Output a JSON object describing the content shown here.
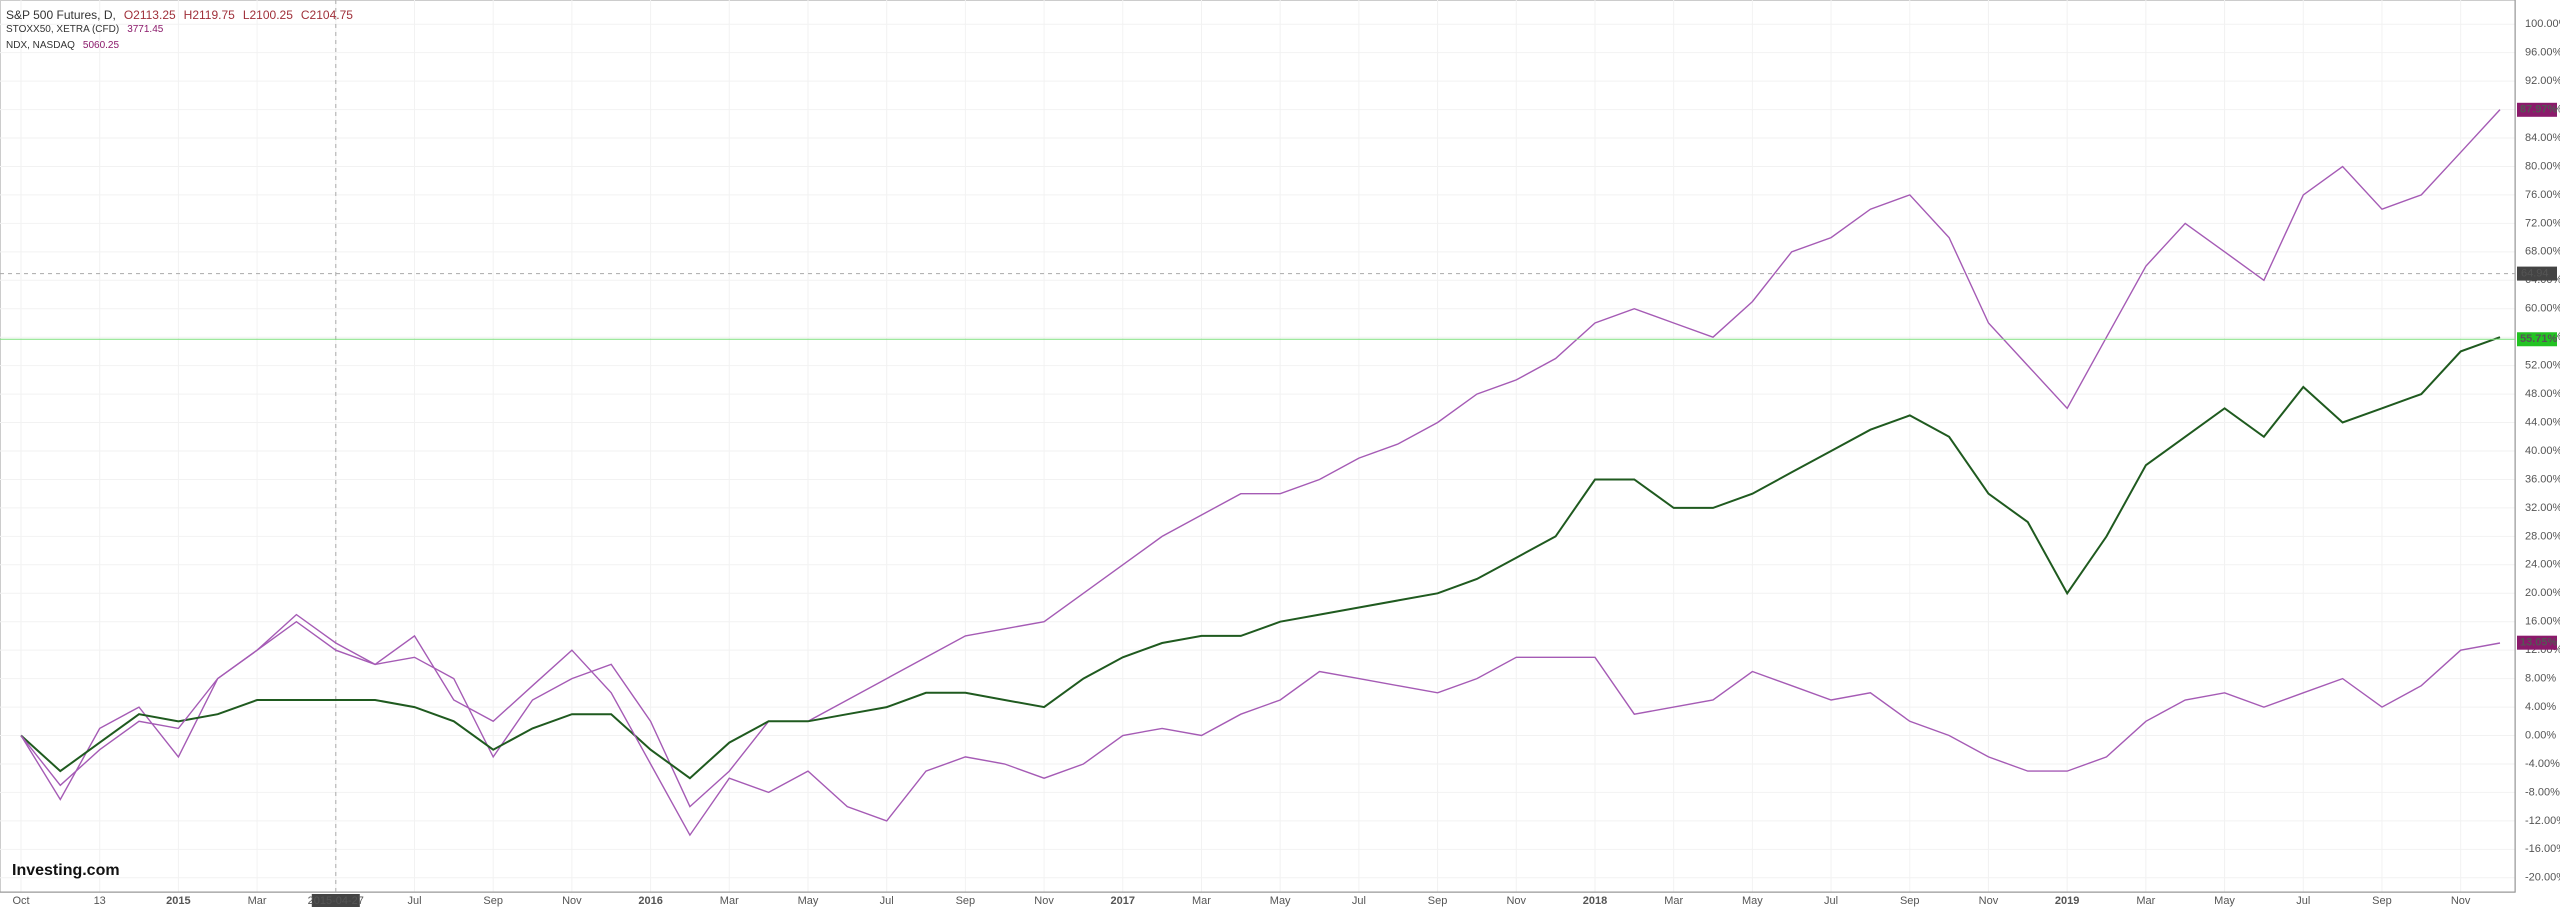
{
  "chart_data": {
    "type": "line",
    "title": "S&P 500 Futures, D,",
    "ohlc": [
      "O2113.25",
      "H2119.75",
      "L2100.25",
      "C2104.75"
    ],
    "categories": [
      "Oct",
      null,
      "13",
      null,
      "2015",
      null,
      "Mar",
      null,
      "2015-04-27",
      null,
      "Jul",
      null,
      "Sep",
      null,
      "Nov",
      null,
      "2016",
      null,
      "Mar",
      null,
      "May",
      null,
      "Jul",
      null,
      "Sep",
      null,
      "Nov",
      null,
      "2017",
      null,
      "Mar",
      null,
      "May",
      null,
      "Jul",
      null,
      "Sep",
      null,
      "Nov",
      null,
      "2018",
      null,
      "Mar",
      null,
      "May",
      null,
      "Jul",
      null,
      "Sep",
      null,
      "Nov",
      null,
      "2019",
      null,
      "Mar",
      null,
      "May",
      null,
      "Jul",
      null,
      "Sep",
      null,
      "Nov",
      null
    ],
    "series": [
      {
        "name": "NDX, NASDAQ",
        "price": "5060.25",
        "color": "#a55bb5",
        "tag_color": "#8b1a6b",
        "end_value": 87.97,
        "end_label": "87.97%",
        "values": [
          0,
          -9,
          1,
          4,
          -3,
          8,
          12,
          16,
          12,
          10,
          11,
          8,
          -3,
          5,
          8,
          10,
          2,
          -10,
          -5,
          2,
          2,
          5,
          8,
          11,
          14,
          15,
          16,
          20,
          24,
          28,
          31,
          34,
          34,
          36,
          39,
          41,
          44,
          48,
          50,
          53,
          58,
          60,
          58,
          56,
          61,
          68,
          70,
          74,
          76,
          70,
          58,
          52,
          46,
          56,
          66,
          72,
          68,
          64,
          76,
          80,
          74,
          76,
          82,
          88
        ]
      },
      {
        "name": "S&P 500 Futures",
        "color": "#1f5a1f",
        "tag_color": "#22c322",
        "end_value": 55.71,
        "end_label": "55.71%",
        "values": [
          0,
          -5,
          -1,
          3,
          2,
          3,
          5,
          5,
          5,
          5,
          4,
          2,
          -2,
          1,
          3,
          3,
          -2,
          -6,
          -1,
          2,
          2,
          3,
          4,
          6,
          6,
          5,
          4,
          8,
          11,
          13,
          14,
          14,
          16,
          17,
          18,
          19,
          20,
          22,
          25,
          28,
          36,
          36,
          32,
          32,
          34,
          37,
          40,
          43,
          45,
          42,
          34,
          30,
          20,
          28,
          38,
          42,
          46,
          42,
          49,
          44,
          46,
          48,
          54,
          56
        ]
      },
      {
        "name": "STOXX50, XETRA (CFD)",
        "price": "3771.45",
        "color": "#a55bb5",
        "tag_color": "#8b1a6b",
        "end_value": 13.05,
        "end_label": "13.05%",
        "values": [
          0,
          -7,
          -2,
          2,
          1,
          8,
          12,
          17,
          13,
          10,
          14,
          5,
          2,
          7,
          12,
          6,
          -4,
          -14,
          -6,
          -8,
          -5,
          -10,
          -12,
          -5,
          -3,
          -4,
          -6,
          -4,
          0,
          1,
          0,
          3,
          5,
          9,
          8,
          7,
          6,
          8,
          11,
          11,
          11,
          3,
          4,
          5,
          9,
          7,
          5,
          6,
          2,
          0,
          -3,
          -5,
          -5,
          -3,
          2,
          5,
          6,
          4,
          6,
          8,
          4,
          7,
          12,
          13
        ]
      }
    ],
    "crosshair": 64.94,
    "crosshair_category": 8,
    "ylim": [
      -22,
      102
    ],
    "yticks": [
      {
        "value": -20,
        "label": "-20.00%"
      },
      {
        "value": -16,
        "label": "-16.00%"
      },
      {
        "value": -12,
        "label": "-12.00%"
      },
      {
        "value": -8,
        "label": "-8.00%"
      },
      {
        "value": -4,
        "label": "-4.00%"
      },
      {
        "value": 0,
        "label": "0.00%"
      },
      {
        "value": 4,
        "label": "4.00%"
      },
      {
        "value": 8,
        "label": "8.00%"
      },
      {
        "value": 12,
        "label": "12.00%"
      },
      {
        "value": 16,
        "label": "16.00%"
      },
      {
        "value": 20,
        "label": "20.00%"
      },
      {
        "value": 24,
        "label": "24.00%"
      },
      {
        "value": 28,
        "label": "28.00%"
      },
      {
        "value": 32,
        "label": "32.00%"
      },
      {
        "value": 36,
        "label": "36.00%"
      },
      {
        "value": 40,
        "label": "40.00%"
      },
      {
        "value": 44,
        "label": "44.00%"
      },
      {
        "value": 48,
        "label": "48.00%"
      },
      {
        "value": 52,
        "label": "52.00%"
      },
      {
        "value": 56,
        "label": "56.00%"
      },
      {
        "value": 60,
        "label": "60.00%"
      },
      {
        "value": 64,
        "label": "64.00%"
      },
      {
        "value": 68,
        "label": "68.00%"
      },
      {
        "value": 72,
        "label": "72.00%"
      },
      {
        "value": 76,
        "label": "76.00%"
      },
      {
        "value": 80,
        "label": "80.00%"
      },
      {
        "value": 84,
        "label": "84.00%"
      },
      {
        "value": 88,
        "label": "88.00%"
      },
      {
        "value": 92,
        "label": "92.00%"
      },
      {
        "value": 96,
        "label": "96.00%"
      },
      {
        "value": 100,
        "label": "100.00%"
      }
    ],
    "grid": true,
    "logo": "Investing.com"
  }
}
